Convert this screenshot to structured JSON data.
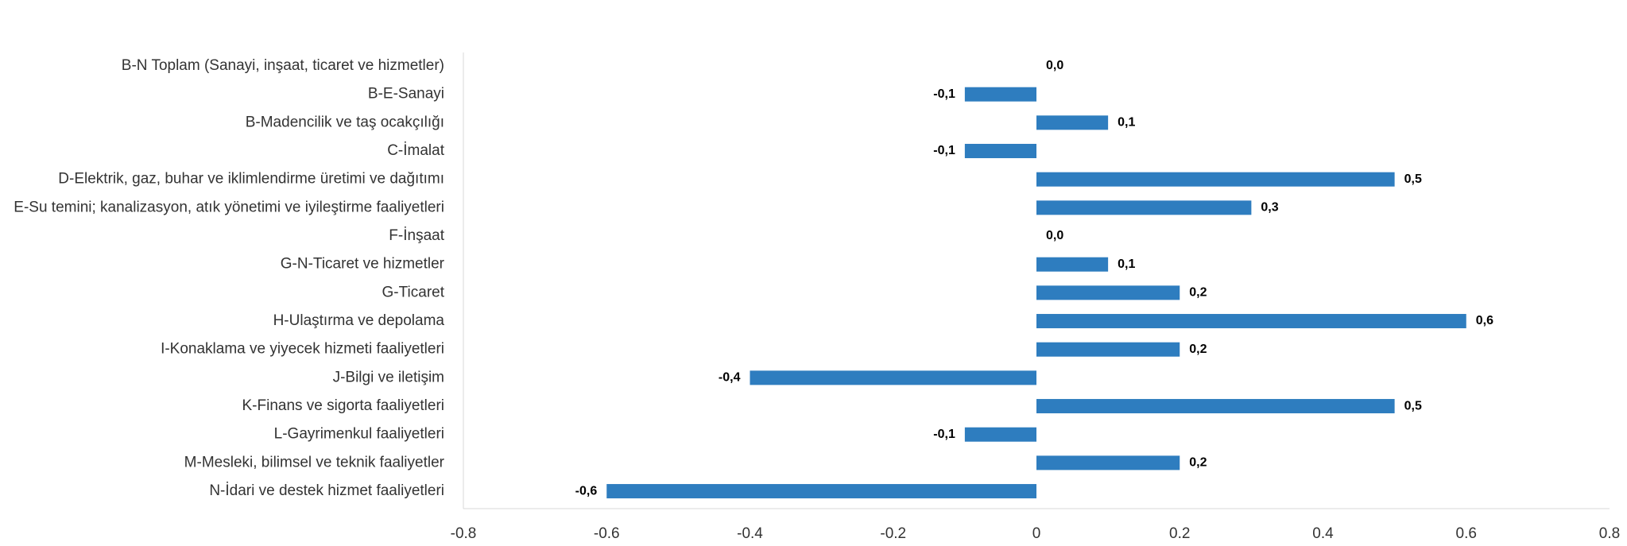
{
  "chart_data": {
    "type": "bar",
    "orientation": "horizontal",
    "categories": [
      "B-N Toplam (Sanayi, inşaat, ticaret ve hizmetler)",
      "B-E-Sanayi",
      "B-Madencilik ve taş ocakçılığı",
      "C-İmalat",
      "D-Elektrik, gaz, buhar ve iklimlendirme üretimi ve dağıtımı",
      "E-Su temini; kanalizasyon, atık yönetimi ve iyileştirme faaliyetleri",
      "F-İnşaat",
      "G-N-Ticaret ve hizmetler",
      "G-Ticaret",
      "H-Ulaştırma ve depolama",
      "I-Konaklama ve yiyecek hizmeti faaliyetleri",
      "J-Bilgi ve iletişim",
      "K-Finans ve sigorta faaliyetleri",
      "L-Gayrimenkul faaliyetleri",
      "M-Mesleki, bilimsel ve teknik faaliyetler",
      "N-İdari ve destek hizmet faaliyetleri"
    ],
    "values": [
      0.0,
      -0.1,
      0.1,
      -0.1,
      0.5,
      0.3,
      0.0,
      0.1,
      0.2,
      0.6,
      0.2,
      -0.4,
      0.5,
      -0.1,
      0.2,
      -0.6
    ],
    "data_labels": [
      "0,0",
      "-0,1",
      "0,1",
      "-0,1",
      "0,5",
      "0,3",
      "0,0",
      "0,1",
      "0,2",
      "0,6",
      "0,2",
      "-0,4",
      "0,5",
      "-0,1",
      "0,2",
      "-0,6"
    ],
    "xlim": [
      -0.8,
      0.8
    ],
    "x_ticks": [
      "-0.8",
      "-0.6",
      "-0.4",
      "-0.2",
      "0",
      "0.2",
      "0.4",
      "0.6",
      "0.8"
    ],
    "title": "",
    "xlabel": "",
    "ylabel": "",
    "grid": false,
    "legend": "none",
    "bar_color": "#2e7dbf"
  }
}
